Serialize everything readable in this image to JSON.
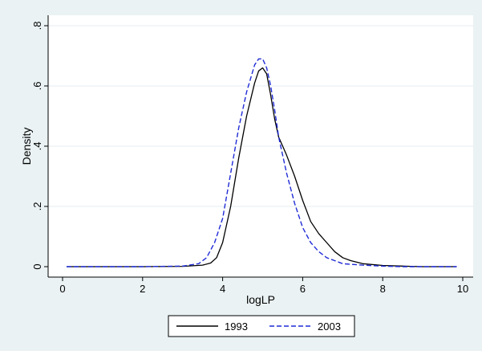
{
  "chart_data": {
    "type": "line",
    "title": "",
    "xlabel": "logLP",
    "ylabel": "Density",
    "xlim": [
      0,
      10
    ],
    "ylim": [
      0,
      0.8
    ],
    "x_ticks": [
      {
        "value": 0,
        "label": "0"
      },
      {
        "value": 2,
        "label": "2"
      },
      {
        "value": 4,
        "label": "4"
      },
      {
        "value": 6,
        "label": "6"
      },
      {
        "value": 8,
        "label": "8"
      },
      {
        "value": 10,
        "label": "10"
      }
    ],
    "y_ticks": [
      {
        "value": 0,
        "label": "0"
      },
      {
        "value": 0.2,
        "label": ".2"
      },
      {
        "value": 0.4,
        "label": ".4"
      },
      {
        "value": 0.6,
        "label": ".6"
      },
      {
        "value": 0.8,
        "label": ".8"
      }
    ],
    "grid": "horizontal",
    "legend_position": "bottom",
    "series": [
      {
        "name": "1993",
        "color": "#000000",
        "dash": "solid",
        "x": [
          0.1,
          1,
          2,
          3,
          3.5,
          3.7,
          3.85,
          4.0,
          4.2,
          4.4,
          4.6,
          4.8,
          4.9,
          5.0,
          5.1,
          5.2,
          5.3,
          5.4,
          5.5,
          5.6,
          5.8,
          6.0,
          6.2,
          6.4,
          6.6,
          6.8,
          7.0,
          7.2,
          7.5,
          8.0,
          8.5,
          9.0,
          9.85
        ],
        "y": [
          0.0,
          0.0,
          0.0,
          0.001,
          0.005,
          0.012,
          0.03,
          0.08,
          0.2,
          0.36,
          0.5,
          0.61,
          0.65,
          0.66,
          0.64,
          0.57,
          0.49,
          0.43,
          0.4,
          0.37,
          0.3,
          0.22,
          0.15,
          0.11,
          0.08,
          0.05,
          0.03,
          0.02,
          0.01,
          0.004,
          0.002,
          0.0,
          0.0
        ]
      },
      {
        "name": "2003",
        "color": "#1f2bd6",
        "dash": "dashed",
        "x": [
          0.1,
          1,
          2,
          3,
          3.4,
          3.6,
          3.8,
          4.0,
          4.2,
          4.4,
          4.6,
          4.8,
          4.9,
          5.0,
          5.1,
          5.2,
          5.3,
          5.4,
          5.6,
          5.8,
          6.0,
          6.2,
          6.4,
          6.6,
          6.8,
          7.0,
          7.5,
          8.0,
          8.5,
          9.0,
          9.85
        ],
        "y": [
          0.0,
          0.0,
          0.0,
          0.002,
          0.01,
          0.03,
          0.08,
          0.16,
          0.31,
          0.46,
          0.58,
          0.67,
          0.69,
          0.69,
          0.66,
          0.6,
          0.52,
          0.43,
          0.31,
          0.21,
          0.13,
          0.08,
          0.05,
          0.03,
          0.02,
          0.01,
          0.005,
          0.002,
          0.0,
          0.0,
          0.0
        ]
      }
    ]
  }
}
